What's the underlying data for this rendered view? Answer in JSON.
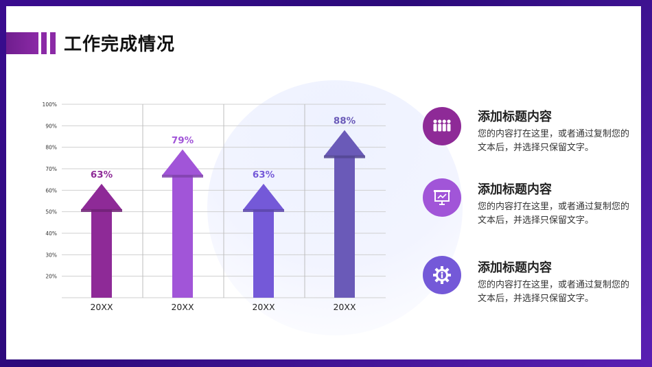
{
  "title": "工作完成情况",
  "colors": {
    "c1": "#8e2a97",
    "c2": "#a155d8",
    "c3": "#7459d8",
    "c4": "#6a5ab8"
  },
  "chart_data": {
    "type": "bar",
    "categories": [
      "20XX",
      "20XX",
      "20XX",
      "20XX"
    ],
    "values": [
      63,
      79,
      63,
      88
    ],
    "value_labels": [
      "63%",
      "79%",
      "63%",
      "88%"
    ],
    "y_ticks": [
      "20%",
      "30%",
      "40%",
      "50%",
      "60%",
      "70%",
      "80%",
      "90%",
      "100%"
    ],
    "ylim": [
      10,
      100
    ],
    "grid": true,
    "title": "",
    "xlabel": "",
    "ylabel": ""
  },
  "items": [
    {
      "icon": "people-icon",
      "color": "#8e2a97",
      "title": "添加标题内容",
      "desc": "您的内容打在这里，或者通过复制您的文本后，并选择只保留文字。"
    },
    {
      "icon": "presentation-board-icon",
      "color": "#a155d8",
      "title": "添加标题内容",
      "desc": "您的内容打在这里，或者通过复制您的文本后，并选择只保留文字。"
    },
    {
      "icon": "gear-person-icon",
      "color": "#7459d8",
      "title": "添加标题内容",
      "desc": "您的内容打在这里，或者通过复制您的文本后，并选择只保留文字。"
    }
  ]
}
